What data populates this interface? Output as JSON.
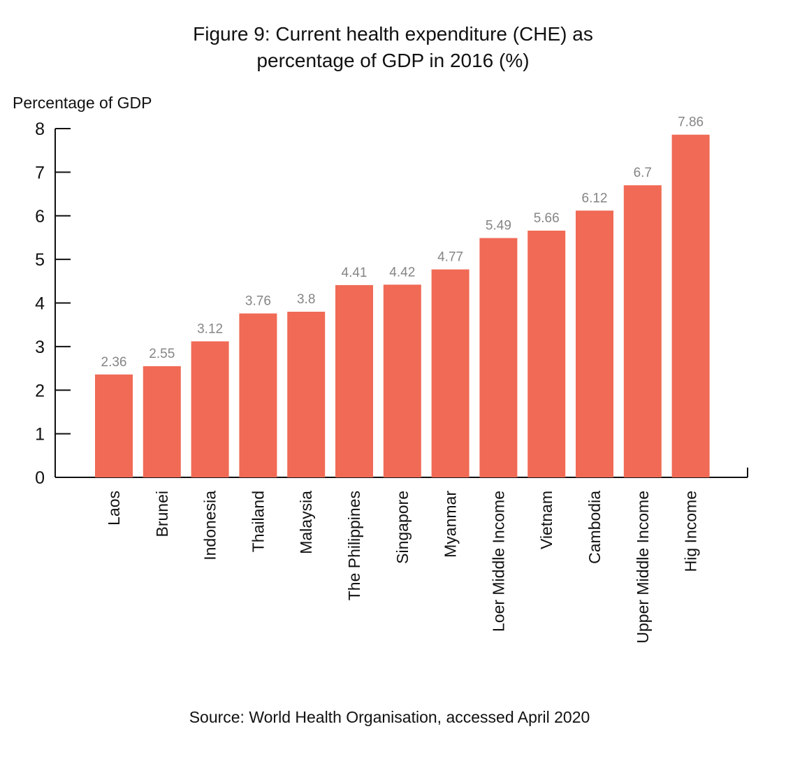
{
  "chart_data": {
    "type": "bar",
    "title_lines": [
      "Figure 9: Current health expenditure (CHE) as",
      "percentage of GDP in 2016 (%)"
    ],
    "ylabel": "Percentage of GDP",
    "xlabel": "",
    "ylim": [
      0,
      8
    ],
    "yticks": [
      0,
      1,
      2,
      3,
      4,
      5,
      6,
      7,
      8
    ],
    "grid": false,
    "categories": [
      "Laos",
      "Brunei",
      "Indonesia",
      "Thailand",
      "Malaysia",
      "The Philippines",
      "Singapore",
      "Myanmar",
      "Loer Middle Income",
      "Vietnam",
      "Cambodia",
      "Upper Middle Income",
      "Hig Income"
    ],
    "values": [
      2.36,
      2.55,
      3.12,
      3.76,
      3.8,
      4.41,
      4.42,
      4.77,
      5.49,
      5.66,
      6.12,
      6.7,
      7.86
    ],
    "data_labels": [
      "2.36",
      "2.55",
      "3.12",
      "3.76",
      "3.8",
      "4.41",
      "4.42",
      "4.77",
      "5.49",
      "5.66",
      "6.12",
      "6.7",
      "7.86"
    ],
    "bar_color": "#f06a55",
    "data_label_color": "#858585",
    "source": "Source: World Health Organisation, accessed April 2020"
  }
}
